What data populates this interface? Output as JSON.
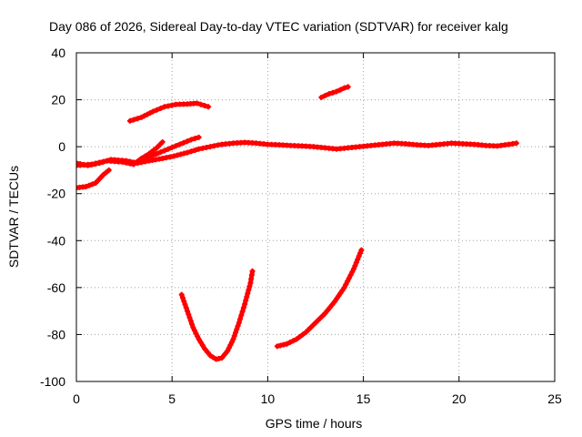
{
  "chart_data": {
    "type": "scatter",
    "title": "Day 086 of 2026, Sidereal Day-to-day VTEC variation (SDTVAR) for receiver kalg",
    "xlabel": "GPS time / hours",
    "ylabel": "SDTVAR / TECUs",
    "xlim": [
      0,
      25
    ],
    "ylim": [
      -100,
      40
    ],
    "xticks": [
      0,
      5,
      10,
      15,
      20,
      25
    ],
    "yticks": [
      -100,
      -80,
      -60,
      -40,
      -20,
      0,
      20,
      40
    ],
    "grid": true,
    "legend": "none",
    "color": "#ff0000",
    "marker": "cross",
    "series": [
      {
        "values": [
          [
            0.0,
            -7
          ],
          [
            0.6,
            -8
          ],
          [
            1.2,
            -7
          ],
          [
            1.8,
            -5.5
          ],
          [
            2.6,
            -6
          ],
          [
            3.2,
            -7
          ],
          [
            3.8,
            -6
          ],
          [
            4.5,
            -5
          ],
          [
            5.1,
            -4
          ],
          [
            5.8,
            -2.5
          ],
          [
            6.4,
            -1
          ],
          [
            7.0,
            0
          ],
          [
            7.6,
            1
          ],
          [
            8.2,
            1.5
          ],
          [
            8.8,
            1.8
          ],
          [
            9.4,
            1.5
          ],
          [
            10.0,
            1
          ],
          [
            10.6,
            0.8
          ],
          [
            11.2,
            0.5
          ],
          [
            11.8,
            0.3
          ],
          [
            12.4,
            0
          ],
          [
            13.0,
            -0.5
          ],
          [
            13.6,
            -1
          ],
          [
            14.2,
            -0.5
          ],
          [
            14.8,
            0
          ],
          [
            15.4,
            0.5
          ],
          [
            16.0,
            1
          ],
          [
            16.6,
            1.5
          ],
          [
            17.2,
            1.2
          ],
          [
            17.8,
            0.8
          ],
          [
            18.4,
            0.5
          ],
          [
            19.0,
            1
          ],
          [
            19.6,
            1.5
          ],
          [
            20.2,
            1.2
          ],
          [
            20.8,
            1
          ],
          [
            21.4,
            0.5
          ],
          [
            22.0,
            0.3
          ],
          [
            22.6,
            1
          ],
          [
            23.0,
            1.5
          ]
        ]
      },
      {
        "values": [
          [
            0.0,
            -8
          ],
          [
            0.8,
            -7.5
          ],
          [
            1.6,
            -6
          ],
          [
            2.4,
            -6.5
          ],
          [
            3.0,
            -7.5
          ],
          [
            3.4,
            -5
          ],
          [
            3.8,
            -3
          ],
          [
            4.2,
            -0.5
          ],
          [
            4.5,
            2
          ]
        ]
      },
      {
        "values": [
          [
            3.0,
            -7
          ],
          [
            3.6,
            -5
          ],
          [
            4.2,
            -3
          ],
          [
            4.8,
            -1
          ],
          [
            5.4,
            1
          ],
          [
            6.0,
            3
          ],
          [
            6.4,
            4
          ]
        ]
      },
      {
        "values": [
          [
            0.0,
            -17.5
          ],
          [
            0.5,
            -17
          ],
          [
            1.0,
            -15.5
          ],
          [
            1.4,
            -12
          ],
          [
            1.7,
            -10
          ]
        ]
      },
      {
        "values": [
          [
            2.8,
            11
          ],
          [
            3.4,
            12.5
          ],
          [
            4.0,
            15
          ],
          [
            4.6,
            17
          ],
          [
            5.2,
            18
          ],
          [
            5.8,
            18.2
          ],
          [
            6.3,
            18.5
          ],
          [
            6.7,
            17.5
          ],
          [
            6.9,
            17
          ]
        ]
      },
      {
        "values": [
          [
            12.8,
            21
          ],
          [
            13.2,
            22.5
          ],
          [
            13.6,
            23.5
          ],
          [
            14.0,
            25
          ],
          [
            14.2,
            25.5
          ]
        ]
      },
      {
        "values": [
          [
            5.5,
            -63
          ],
          [
            5.8,
            -70
          ],
          [
            6.1,
            -77
          ],
          [
            6.4,
            -82
          ],
          [
            6.7,
            -86
          ],
          [
            7.0,
            -89
          ],
          [
            7.3,
            -90.5
          ],
          [
            7.6,
            -90
          ],
          [
            7.9,
            -87
          ],
          [
            8.2,
            -82
          ],
          [
            8.5,
            -75
          ],
          [
            8.8,
            -67
          ],
          [
            9.1,
            -58
          ],
          [
            9.2,
            -53
          ]
        ]
      },
      {
        "values": [
          [
            10.5,
            -85
          ],
          [
            11.0,
            -84
          ],
          [
            11.5,
            -82
          ],
          [
            12.0,
            -79
          ],
          [
            12.5,
            -75
          ],
          [
            13.0,
            -71
          ],
          [
            13.5,
            -66
          ],
          [
            14.0,
            -60
          ],
          [
            14.5,
            -52
          ],
          [
            14.9,
            -44
          ]
        ]
      }
    ]
  }
}
